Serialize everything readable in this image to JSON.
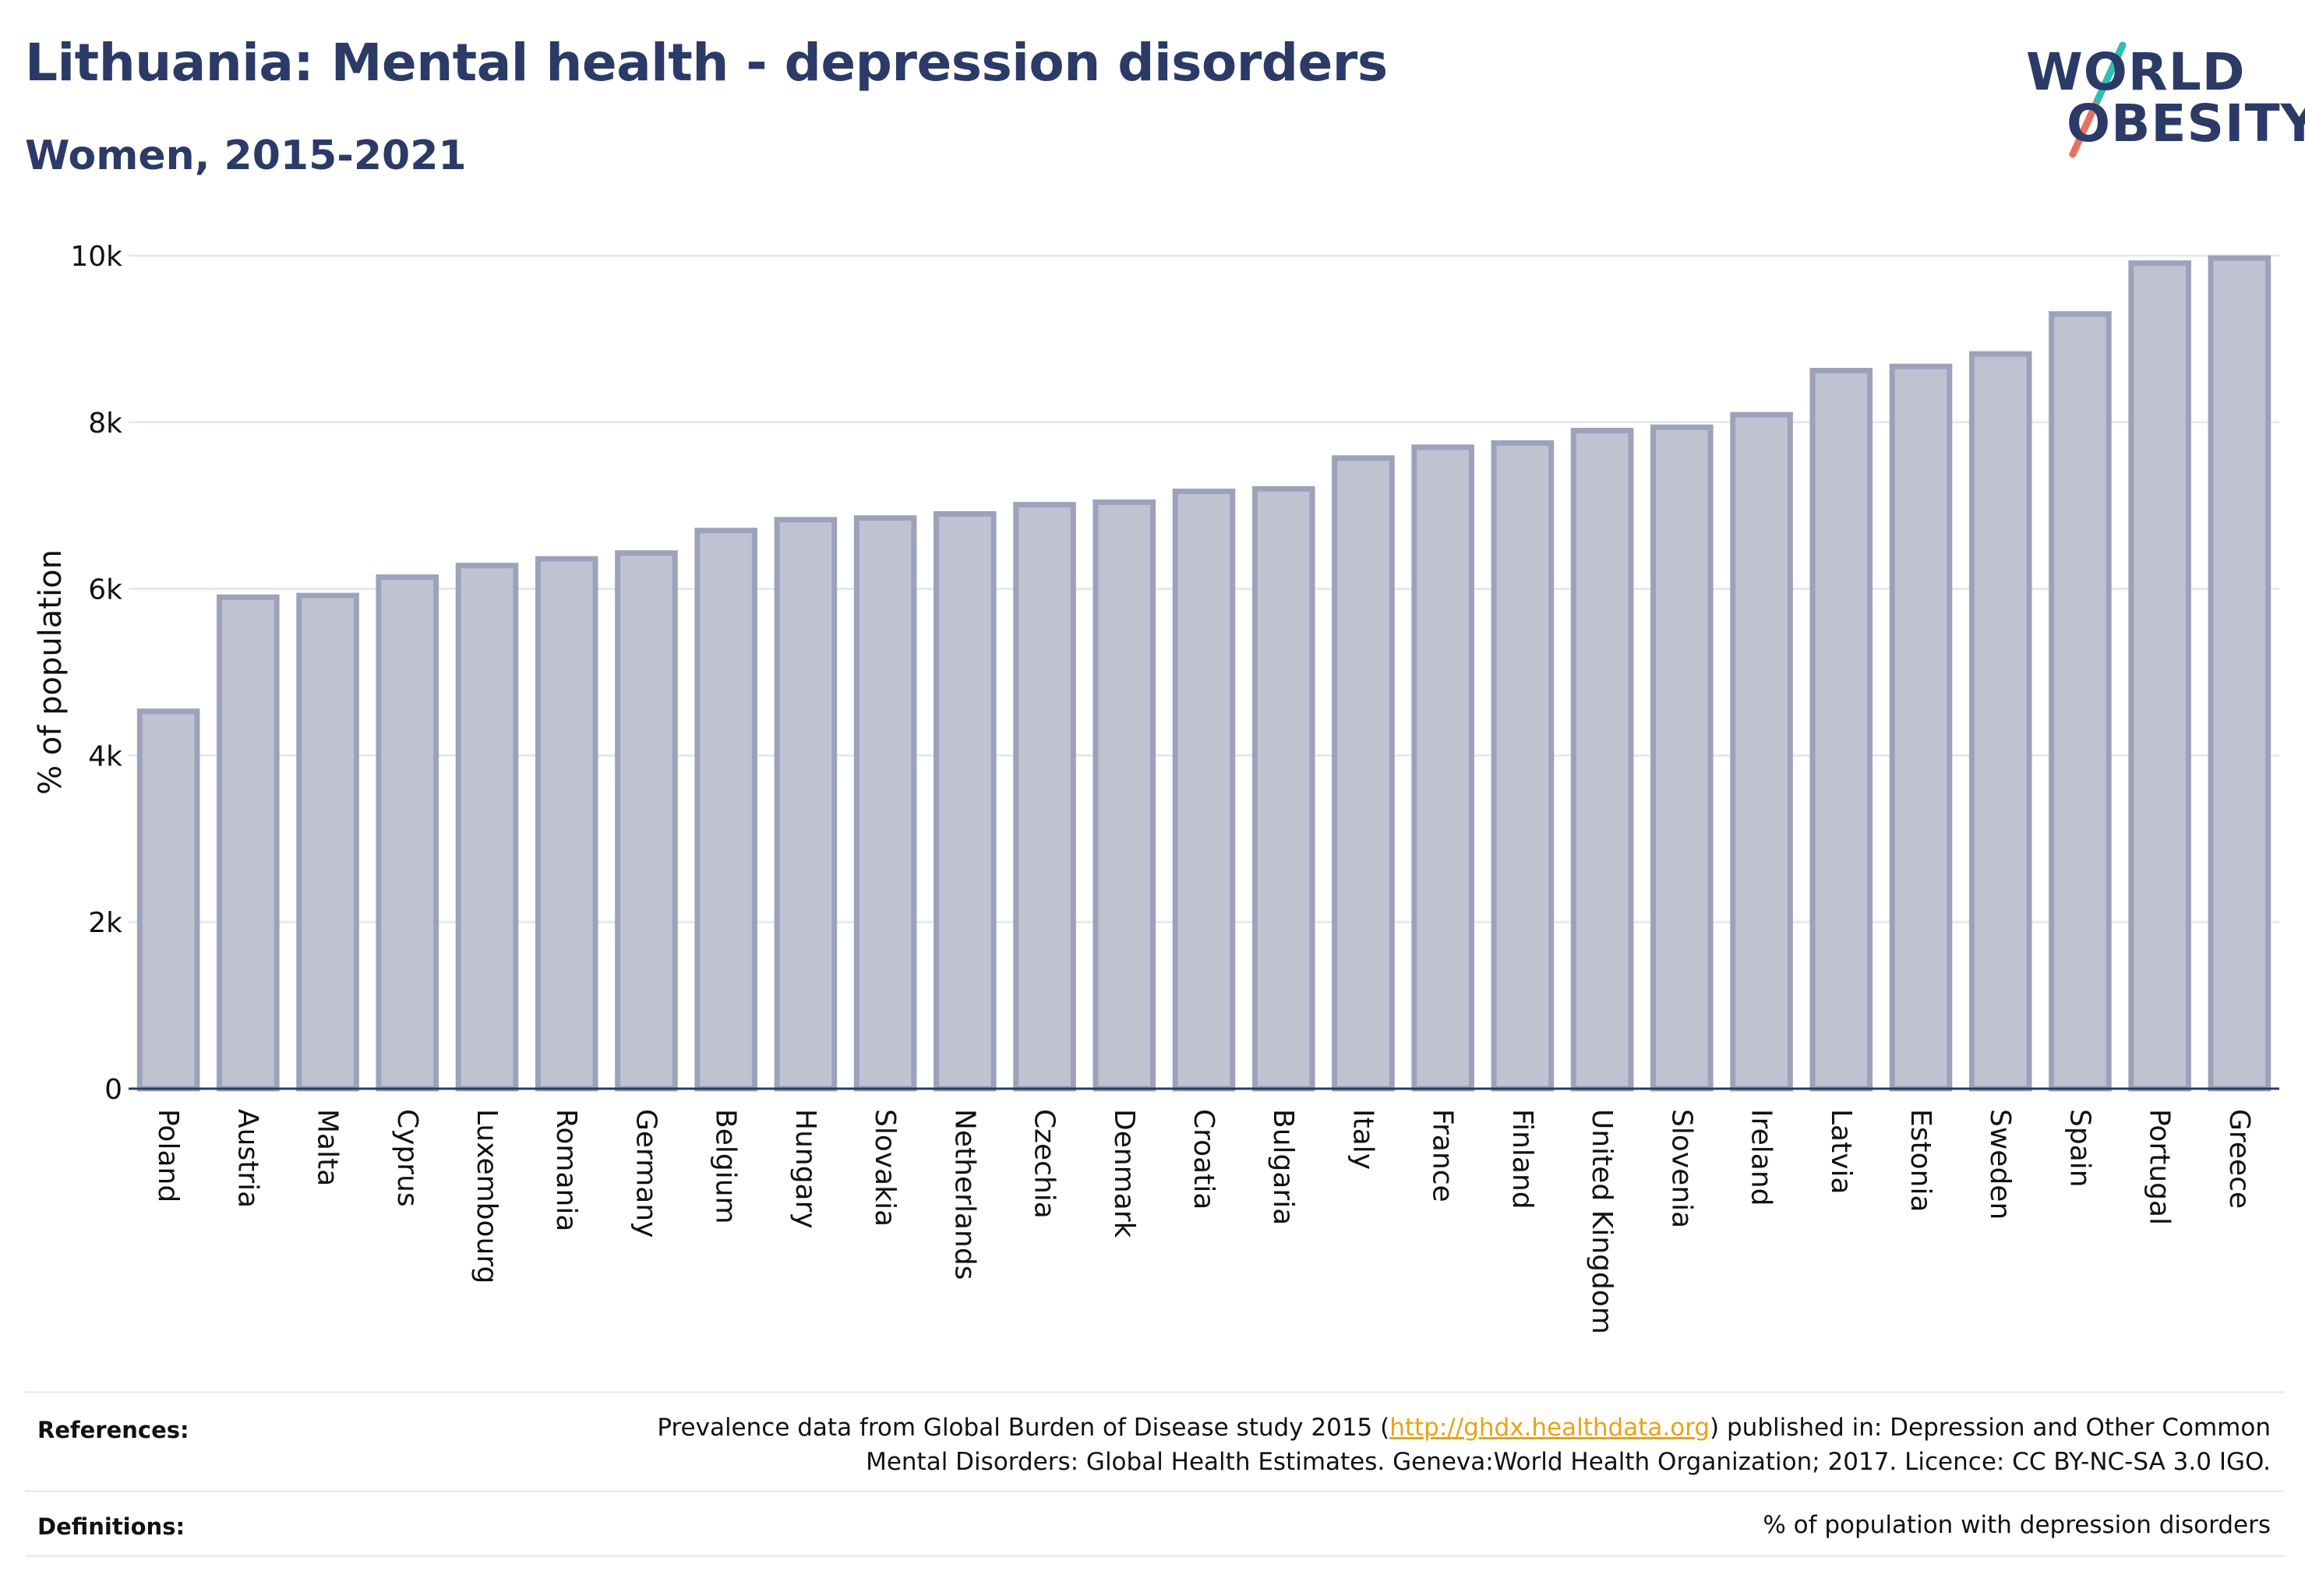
{
  "header": {
    "title": "Lithuania: Mental health - depression disorders",
    "subtitle": "Women, 2015-2021"
  },
  "logo": {
    "line1": "WORLD",
    "line2": "OBESITY",
    "slash_colors": [
      "#2ebfb4",
      "#e5735f"
    ]
  },
  "footer": {
    "references_label": "References:",
    "references_text_before": "Prevalence data from Global Burden of Disease study 2015 (",
    "references_link": "http://ghdx.healthdata.org",
    "references_text_after": ") published in: Depression and Other Common",
    "references_line2": "Mental Disorders: Global Health Estimates. Geneva:World Health Organization; 2017. Licence: CC BY-NC-SA 3.0 IGO.",
    "definitions_label": "Definitions:",
    "definitions_text": "% of population with depression disorders"
  },
  "chart_data": {
    "type": "bar",
    "title": "Lithuania: Mental health - depression disorders",
    "subtitle": "Women, 2015-2021",
    "ylabel": "% of population",
    "xlabel": "",
    "ylim": [
      0,
      10000
    ],
    "yticks": [
      0,
      2000,
      4000,
      6000,
      8000,
      10000
    ],
    "ytick_labels": [
      "0",
      "2k",
      "4k",
      "6k",
      "8k",
      "10k"
    ],
    "grid": true,
    "bar_fill": "#bfc2d0",
    "bar_stroke": "#9da2ba",
    "categories": [
      "Poland",
      "Austria",
      "Malta",
      "Cyprus",
      "Luxembourg",
      "Romania",
      "Germany",
      "Belgium",
      "Hungary",
      "Slovakia",
      "Netherlands",
      "Czechia",
      "Denmark",
      "Croatia",
      "Bulgaria",
      "Italy",
      "France",
      "Finland",
      "United Kingdom",
      "Slovenia",
      "Ireland",
      "Latvia",
      "Estonia",
      "Sweden",
      "Spain",
      "Portugal",
      "Greece"
    ],
    "values": [
      4530,
      5900,
      5920,
      6140,
      6280,
      6360,
      6430,
      6700,
      6830,
      6850,
      6900,
      7010,
      7040,
      7170,
      7200,
      7570,
      7700,
      7750,
      7900,
      7940,
      8090,
      8620,
      8670,
      8820,
      9300,
      9910,
      9970
    ]
  }
}
